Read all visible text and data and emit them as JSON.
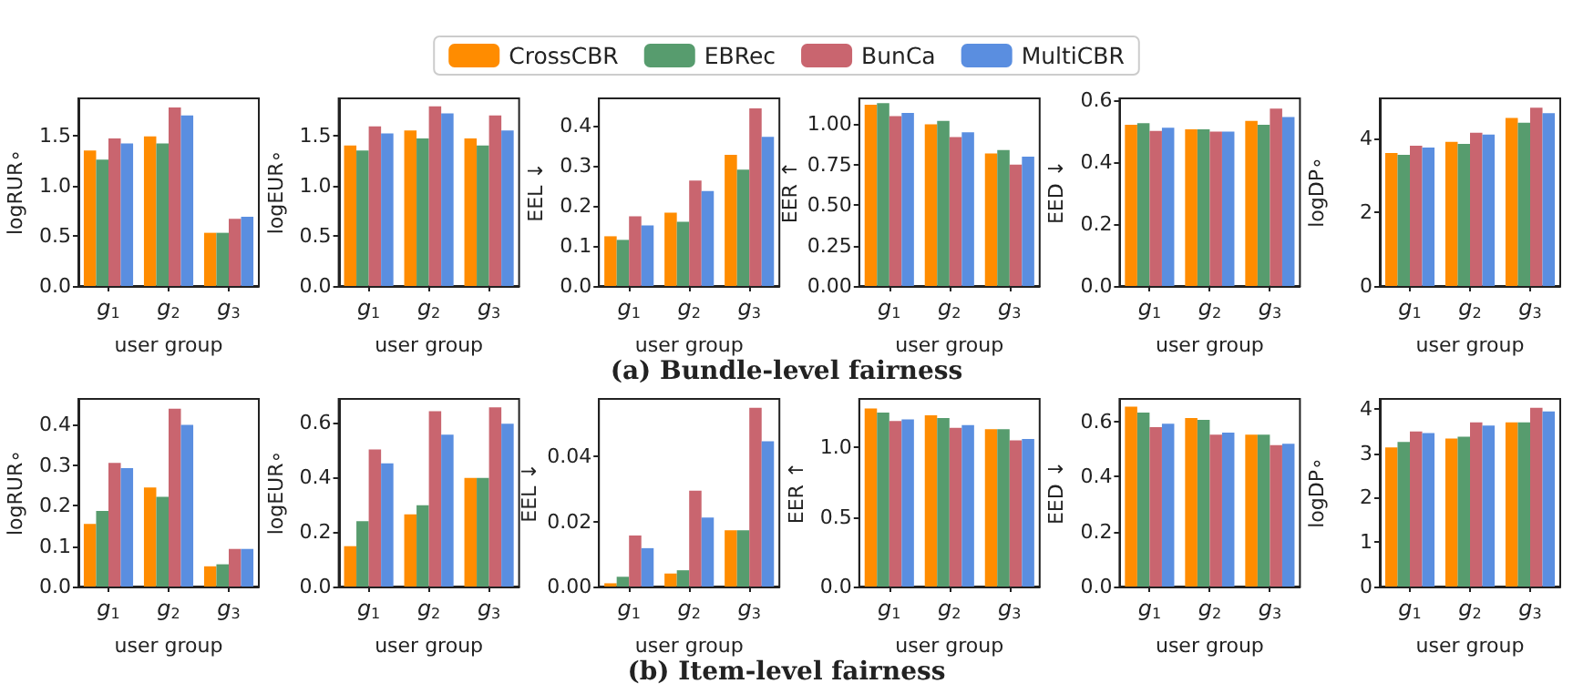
{
  "chart_data": [
    {
      "type": "bar",
      "ylabel": "logRUR∘",
      "xlabel": "user group",
      "categories": [
        "g$_{1}$",
        "g$_{2}$",
        "g$_{3}$"
      ],
      "legend": "top",
      "grid": false,
      "annotations": [
        "(a) Bundle-level fairness"
      ],
      "ylim": [
        0,
        1.87
      ],
      "yticks": [
        {
          "value": 0,
          "label": "0.0"
        },
        0.5,
        {
          "value": 1,
          "label": "1.0"
        },
        1.5
      ],
      "series": [
        {
          "name": "CrossCBR",
          "color": "#ff8c00",
          "values": [
            1.35,
            1.49,
            0.53
          ]
        },
        {
          "name": "EBRec",
          "color": "#579c6e",
          "values": [
            1.26,
            1.42,
            0.53
          ]
        },
        {
          "name": "BunCa",
          "color": "#c9656f",
          "values": [
            1.47,
            1.78,
            0.67
          ]
        },
        {
          "name": "MultiCBR",
          "color": "#5a8ee0",
          "values": [
            1.42,
            1.7,
            0.69
          ]
        }
      ]
    },
    {
      "type": "bar",
      "ylabel": "logEUR∘",
      "xlabel": "user group",
      "categories": [
        "g$_{1}$",
        "g$_{2}$",
        "g$_{3}$"
      ],
      "grid": false,
      "ylim": [
        0,
        1.87
      ],
      "yticks": [
        {
          "value": 0,
          "label": "0.0"
        },
        0.5,
        {
          "value": 1,
          "label": "1.0"
        },
        1.5
      ],
      "series": [
        {
          "color": "#ff8c00",
          "values": [
            1.4,
            1.55,
            1.47
          ]
        },
        {
          "color": "#579c6e",
          "values": [
            1.35,
            1.47,
            1.4
          ]
        },
        {
          "color": "#c9656f",
          "values": [
            1.59,
            1.79,
            1.7
          ]
        },
        {
          "color": "#5a8ee0",
          "values": [
            1.52,
            1.72,
            1.55
          ]
        }
      ]
    },
    {
      "type": "bar",
      "ylabel": "EEL ↓",
      "xlabel": "user group",
      "categories": [
        "g$_{1}$",
        "g$_{2}$",
        "g$_{3}$"
      ],
      "grid": false,
      "ylim": [
        0,
        0.468
      ],
      "yticks": [
        {
          "value": 0,
          "label": "0.0"
        },
        0.1,
        0.2,
        0.3,
        0.4
      ],
      "series": [
        {
          "color": "#ff8c00",
          "values": [
            0.124,
            0.183,
            0.327
          ]
        },
        {
          "color": "#579c6e",
          "values": [
            0.115,
            0.16,
            0.29
          ]
        },
        {
          "color": "#c9656f",
          "values": [
            0.174,
            0.263,
            0.443
          ]
        },
        {
          "color": "#5a8ee0",
          "values": [
            0.151,
            0.237,
            0.372
          ]
        }
      ]
    },
    {
      "type": "bar",
      "ylabel": "EER ↑",
      "xlabel": "user group",
      "categories": [
        "g$_{1}$",
        "g$_{2}$",
        "g$_{3}$"
      ],
      "grid": false,
      "ylim": [
        0,
        1.16
      ],
      "yticks": [
        {
          "value": 0,
          "label": "0.00"
        },
        0.25,
        {
          "value": 0.5,
          "label": "0.50"
        },
        0.75,
        {
          "value": 1,
          "label": "1.00"
        }
      ],
      "series": [
        {
          "color": "#ff8c00",
          "values": [
            1.12,
            1.0,
            0.82
          ]
        },
        {
          "color": "#579c6e",
          "values": [
            1.13,
            1.02,
            0.84
          ]
        },
        {
          "color": "#c9656f",
          "values": [
            1.05,
            0.92,
            0.75
          ]
        },
        {
          "color": "#5a8ee0",
          "values": [
            1.07,
            0.95,
            0.8
          ]
        }
      ]
    },
    {
      "type": "bar",
      "ylabel": "EED ↓",
      "xlabel": "user group",
      "categories": [
        "g$_{1}$",
        "g$_{2}$",
        "g$_{3}$"
      ],
      "grid": false,
      "ylim": [
        0,
        0.605
      ],
      "yticks": [
        {
          "value": 0,
          "label": "0.0"
        },
        0.2,
        0.4,
        0.6
      ],
      "series": [
        {
          "color": "#ff8c00",
          "values": [
            0.52,
            0.505,
            0.532
          ]
        },
        {
          "color": "#579c6e",
          "values": [
            0.525,
            0.505,
            0.52
          ]
        },
        {
          "color": "#c9656f",
          "values": [
            0.5,
            0.498,
            0.572
          ]
        },
        {
          "color": "#5a8ee0",
          "values": [
            0.51,
            0.498,
            0.545
          ]
        }
      ]
    },
    {
      "type": "bar",
      "ylabel": "logDP∘",
      "xlabel": "user group",
      "categories": [
        "g$_{1}$",
        "g$_{2}$",
        "g$_{3}$"
      ],
      "grid": false,
      "ylim": [
        0,
        5.08
      ],
      "yticks": [
        0,
        2,
        4
      ],
      "series": [
        {
          "color": "#ff8c00",
          "values": [
            3.6,
            3.9,
            4.55
          ]
        },
        {
          "color": "#579c6e",
          "values": [
            3.55,
            3.85,
            4.42
          ]
        },
        {
          "color": "#c9656f",
          "values": [
            3.8,
            4.15,
            4.83
          ]
        },
        {
          "color": "#5a8ee0",
          "values": [
            3.75,
            4.1,
            4.68
          ]
        }
      ]
    },
    {
      "type": "bar",
      "ylabel": "logRUR∘",
      "xlabel": "user group",
      "categories": [
        "g$_{1}$",
        "g$_{2}$",
        "g$_{3}$"
      ],
      "grid": false,
      "annotations": [
        "(b) Item-level fairness"
      ],
      "ylim": [
        0,
        0.464
      ],
      "yticks": [
        {
          "value": 0,
          "label": "0.0"
        },
        0.1,
        0.2,
        0.3,
        0.4
      ],
      "series": [
        {
          "color": "#ff8c00",
          "values": [
            0.155,
            0.245,
            0.05
          ]
        },
        {
          "color": "#579c6e",
          "values": [
            0.187,
            0.222,
            0.055
          ]
        },
        {
          "color": "#c9656f",
          "values": [
            0.306,
            0.44,
            0.093
          ]
        },
        {
          "color": "#5a8ee0",
          "values": [
            0.293,
            0.4,
            0.093
          ]
        }
      ]
    },
    {
      "type": "bar",
      "ylabel": "logEUR∘",
      "xlabel": "user group",
      "categories": [
        "g$_{1}$",
        "g$_{2}$",
        "g$_{3}$"
      ],
      "grid": false,
      "ylim": [
        0,
        0.688
      ],
      "yticks": [
        {
          "value": 0,
          "label": "0.0"
        },
        0.2,
        0.4,
        0.6
      ],
      "series": [
        {
          "color": "#ff8c00",
          "values": [
            0.148,
            0.265,
            0.398
          ]
        },
        {
          "color": "#579c6e",
          "values": [
            0.24,
            0.298,
            0.398
          ]
        },
        {
          "color": "#c9656f",
          "values": [
            0.503,
            0.643,
            0.657
          ]
        },
        {
          "color": "#5a8ee0",
          "values": [
            0.452,
            0.557,
            0.597
          ]
        }
      ]
    },
    {
      "type": "bar",
      "ylabel": "EEL ↓",
      "xlabel": "user group",
      "categories": [
        "g$_{1}$",
        "g$_{2}$",
        "g$_{3}$"
      ],
      "grid": false,
      "ylim": [
        0,
        0.0577
      ],
      "yticks": [
        {
          "value": 0,
          "label": "0.00"
        },
        {
          "value": 0.02,
          "label": "0.02"
        },
        {
          "value": 0.04,
          "label": "0.04"
        }
      ],
      "series": [
        {
          "color": "#ff8c00",
          "values": [
            0.001,
            0.004,
            0.0173
          ]
        },
        {
          "color": "#579c6e",
          "values": [
            0.003,
            0.005,
            0.0173
          ]
        },
        {
          "color": "#c9656f",
          "values": [
            0.0157,
            0.0295,
            0.055
          ]
        },
        {
          "color": "#5a8ee0",
          "values": [
            0.0118,
            0.0212,
            0.0447
          ]
        }
      ]
    },
    {
      "type": "bar",
      "ylabel": "EER ↑",
      "xlabel": "user group",
      "categories": [
        "g$_{1}$",
        "g$_{2}$",
        "g$_{3}$"
      ],
      "grid": false,
      "ylim": [
        0,
        1.348
      ],
      "yticks": [
        {
          "value": 0,
          "label": "0.0"
        },
        0.5,
        {
          "value": 1,
          "label": "1.0"
        }
      ],
      "series": [
        {
          "color": "#ff8c00",
          "values": [
            1.28,
            1.23,
            1.13
          ]
        },
        {
          "color": "#579c6e",
          "values": [
            1.25,
            1.21,
            1.13
          ]
        },
        {
          "color": "#c9656f",
          "values": [
            1.19,
            1.14,
            1.05
          ]
        },
        {
          "color": "#5a8ee0",
          "values": [
            1.2,
            1.16,
            1.06
          ]
        }
      ]
    },
    {
      "type": "bar",
      "ylabel": "EED ↓",
      "xlabel": "user group",
      "categories": [
        "g$_{1}$",
        "g$_{2}$",
        "g$_{3}$"
      ],
      "grid": false,
      "ylim": [
        0,
        0.683
      ],
      "yticks": [
        {
          "value": 0,
          "label": "0.0"
        },
        0.2,
        0.4,
        0.6
      ],
      "series": [
        {
          "color": "#ff8c00",
          "values": [
            0.655,
            0.613,
            0.553
          ]
        },
        {
          "color": "#579c6e",
          "values": [
            0.633,
            0.607,
            0.553
          ]
        },
        {
          "color": "#c9656f",
          "values": [
            0.58,
            0.553,
            0.515
          ]
        },
        {
          "color": "#5a8ee0",
          "values": [
            0.593,
            0.56,
            0.52
          ]
        }
      ]
    },
    {
      "type": "bar",
      "ylabel": "logDP∘",
      "xlabel": "user group",
      "categories": [
        "g$_{1}$",
        "g$_{2}$",
        "g$_{3}$"
      ],
      "grid": false,
      "ylim": [
        0,
        4.22
      ],
      "yticks": [
        0,
        1,
        2,
        3,
        4
      ],
      "series": [
        {
          "color": "#ff8c00",
          "values": [
            3.13,
            3.33,
            3.69
          ]
        },
        {
          "color": "#579c6e",
          "values": [
            3.25,
            3.37,
            3.69
          ]
        },
        {
          "color": "#c9656f",
          "values": [
            3.49,
            3.69,
            4.02
          ]
        },
        {
          "color": "#5a8ee0",
          "values": [
            3.45,
            3.62,
            3.94
          ]
        }
      ]
    }
  ]
}
